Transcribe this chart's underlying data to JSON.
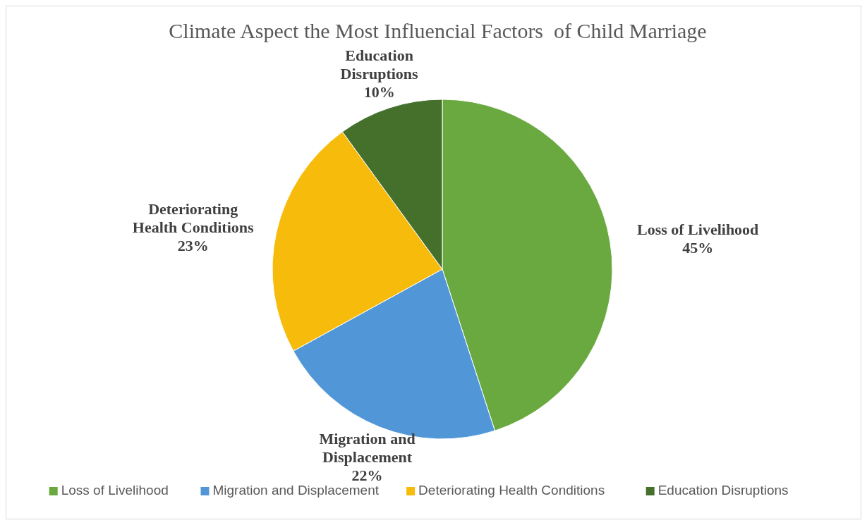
{
  "chart_data": {
    "type": "pie",
    "title": "Climate Aspect the Most Influencial Factors  of Child Marriage",
    "categories": [
      "Loss of Livelihood",
      "Migration and Displacement",
      "Deteriorating Health Conditions",
      "Education Disruptions"
    ],
    "values": [
      45,
      22,
      23,
      10
    ],
    "colors": [
      "#6aa93f",
      "#5197d8",
      "#f7bb0c",
      "#44702c"
    ],
    "value_labels": [
      "45%",
      "22%",
      "23%",
      "10%"
    ],
    "legend": "bottom"
  }
}
